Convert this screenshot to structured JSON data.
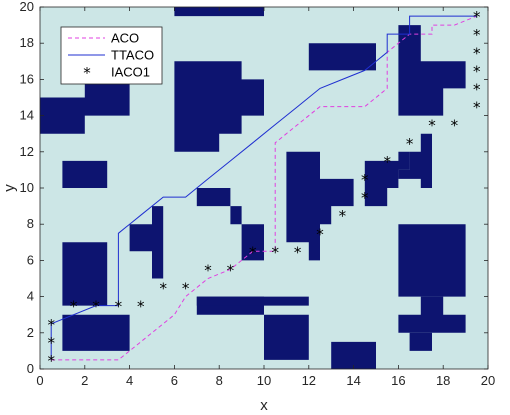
{
  "chart_data": {
    "type": "line",
    "xlabel": "x",
    "ylabel": "y",
    "xlim": [
      0,
      20
    ],
    "ylim": [
      0,
      20
    ],
    "xticks": [
      "0",
      "2",
      "4",
      "6",
      "8",
      "10",
      "12",
      "14",
      "16",
      "18",
      "20"
    ],
    "yticks": [
      "0",
      "2",
      "4",
      "6",
      "8",
      "10",
      "12",
      "14",
      "16",
      "18",
      "20"
    ],
    "grid": false,
    "legend_position": "top-left",
    "colors": {
      "background": "#cce6e6",
      "obstacle": "#0d1470",
      "aco": "#e040e0",
      "ttaco": "#1f2fd0",
      "iaco1": "#000000"
    },
    "obstacles": [
      {
        "x": [
          0,
          2,
          2,
          4,
          4,
          2,
          2,
          0
        ],
        "y": [
          13,
          13,
          14,
          14,
          16,
          16,
          15,
          15
        ]
      },
      {
        "x": [
          1,
          3,
          3,
          1
        ],
        "y": [
          10,
          10,
          11.5,
          11.5
        ]
      },
      {
        "x": [
          6,
          10,
          10,
          6
        ],
        "y": [
          19.5,
          19.5,
          20,
          20
        ]
      },
      {
        "x": [
          6,
          8,
          8,
          9,
          9,
          10,
          10,
          9,
          9,
          6
        ],
        "y": [
          12,
          12,
          13,
          13,
          14,
          14,
          16,
          16,
          17,
          17
        ]
      },
      {
        "x": [
          12,
          15,
          15,
          12
        ],
        "y": [
          16.5,
          16.5,
          18,
          18
        ]
      },
      {
        "x": [
          16,
          18,
          18,
          19,
          19,
          17,
          17,
          16
        ],
        "y": [
          14,
          14,
          15.5,
          15.5,
          17,
          17,
          19,
          19
        ]
      },
      {
        "x": [
          12,
          12.5,
          12.5,
          13,
          13,
          14,
          14,
          12.5,
          12.5,
          11,
          11,
          12
        ],
        "y": [
          6,
          6,
          8,
          8,
          9,
          9,
          10.5,
          10.5,
          12,
          12,
          7,
          7
        ]
      },
      {
        "x": [
          14.5,
          15.5,
          15.5,
          16,
          16,
          16.5,
          16.5,
          16,
          16,
          14.5
        ],
        "y": [
          9,
          9,
          10,
          10,
          11,
          11,
          12,
          12,
          11.5,
          11.5
        ]
      },
      {
        "x": [
          17,
          17.5,
          17.5,
          17,
          17,
          16.5,
          16.5,
          16,
          16,
          17
        ],
        "y": [
          10,
          10,
          13,
          13,
          12,
          12,
          11,
          11,
          10.5,
          10.5
        ]
      },
      {
        "x": [
          7,
          9,
          9,
          10,
          10,
          8.5,
          8.5,
          7
        ],
        "y": [
          9,
          9,
          6,
          6,
          8,
          8,
          10,
          10
        ]
      },
      {
        "x": [
          4,
          5,
          5,
          5.5,
          5.5,
          6,
          6,
          5,
          5,
          4
        ],
        "y": [
          6.5,
          6.5,
          5,
          5,
          9,
          9,
          9,
          9,
          8,
          8
        ]
      },
      {
        "x": [
          1,
          3,
          3,
          1
        ],
        "y": [
          3.5,
          3.5,
          7,
          7
        ]
      },
      {
        "x": [
          1,
          4,
          4,
          1
        ],
        "y": [
          1,
          1,
          3,
          3
        ]
      },
      {
        "x": [
          7,
          12,
          12,
          10,
          10,
          7
        ],
        "y": [
          3,
          3,
          0.5,
          0.5,
          4,
          4
        ]
      },
      {
        "x": [
          7,
          12,
          12,
          7
        ],
        "y": [
          3.5,
          3.5,
          4,
          4
        ]
      },
      {
        "x": [
          13,
          15,
          15,
          13
        ],
        "y": [
          0,
          0,
          1.5,
          1.5
        ]
      },
      {
        "x": [
          16,
          19,
          19,
          18,
          18,
          17,
          17,
          16
        ],
        "y": [
          2,
          2,
          3,
          3,
          4,
          4,
          3,
          3
        ]
      },
      {
        "x": [
          16.5,
          17.5,
          17.5,
          16.5
        ],
        "y": [
          1,
          1,
          2,
          2
        ]
      },
      {
        "x": [
          16,
          19,
          19,
          16
        ],
        "y": [
          4,
          4,
          8,
          8
        ]
      }
    ],
    "series": [
      {
        "name": "ACO",
        "style": "dashed",
        "x": [
          0.5,
          3.5,
          4,
          5,
          6,
          6.5,
          7.5,
          8.5,
          9.5,
          10.5,
          10.5,
          11.5,
          11.5,
          12.5,
          12.5,
          14.5,
          15.5,
          15.5,
          16.5,
          17.5,
          17.5,
          18.5,
          19.5
        ],
        "y": [
          0.5,
          0.5,
          1,
          2,
          3,
          4,
          5,
          5.5,
          6.5,
          6.5,
          12.5,
          13.5,
          13.5,
          14.5,
          14.5,
          14.5,
          15.5,
          17.5,
          18.5,
          18.5,
          19,
          19,
          19.5
        ]
      },
      {
        "name": "TTACO",
        "style": "solid",
        "x": [
          0.5,
          0.5,
          2.5,
          2.5,
          3.5,
          3.5,
          4.5,
          5.5,
          6.5,
          7.5,
          8.5,
          9.5,
          10.5,
          11.5,
          12.5,
          13.5,
          14.5,
          14.5,
          15.5,
          15.5,
          16.5,
          16.5,
          17,
          19.5
        ],
        "y": [
          0.5,
          2.5,
          3.5,
          3.5,
          3.5,
          7.5,
          8.5,
          9.5,
          9.5,
          10.5,
          11.5,
          12.5,
          13.5,
          14.5,
          15.5,
          16,
          16.5,
          16.5,
          17.5,
          18.5,
          18.5,
          19.5,
          19.5,
          19.5
        ]
      },
      {
        "name": "IACO1",
        "style": "markers",
        "x": [
          0.5,
          0.5,
          0.5,
          1.5,
          2.5,
          3.5,
          4.5,
          5.5,
          6.5,
          7.5,
          8.5,
          9.5,
          10.5,
          11.5,
          12.5,
          13.5,
          14.5,
          14.5,
          15.5,
          16.5,
          17.5,
          18.5,
          19.5,
          19.5,
          19.5,
          19.5,
          19.5,
          19.5
        ],
        "y": [
          0.5,
          1.5,
          2.5,
          3.5,
          3.5,
          3.5,
          3.5,
          4.5,
          4.5,
          5.5,
          5.5,
          6.5,
          6.5,
          6.5,
          7.5,
          8.5,
          9.5,
          10.5,
          11.5,
          12.5,
          13.5,
          13.5,
          14.5,
          15.5,
          16.5,
          17.5,
          18.5,
          19.5
        ]
      }
    ]
  }
}
